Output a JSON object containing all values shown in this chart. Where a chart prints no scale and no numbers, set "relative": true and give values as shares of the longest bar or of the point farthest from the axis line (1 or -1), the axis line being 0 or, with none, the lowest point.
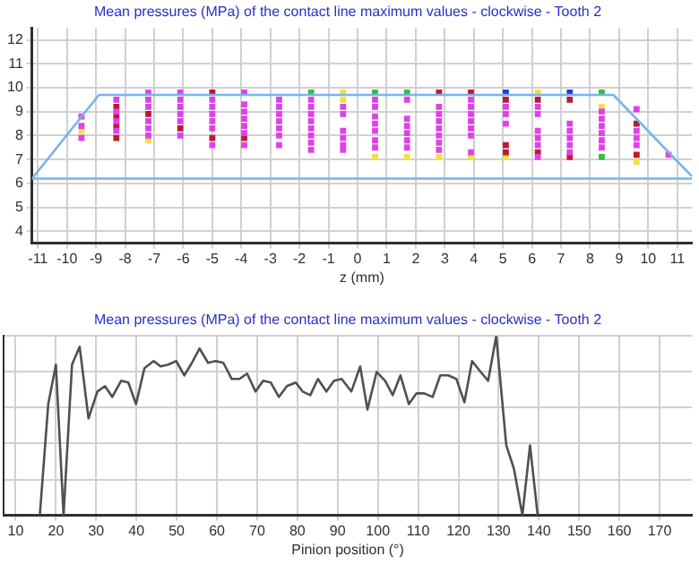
{
  "chart_data": [
    {
      "type": "scatter",
      "title": "Mean pressures (MPa) of the contact line maximum values - clockwise - Tooth 2",
      "xlabel": "z (mm)",
      "xlim": [
        -11.2,
        11.5
      ],
      "xticks": [
        -11,
        -10,
        -9,
        -8,
        -7,
        -6,
        -5,
        -4,
        -3,
        -2,
        -1,
        0,
        1,
        2,
        3,
        4,
        5,
        6,
        7,
        8,
        9,
        10,
        11
      ],
      "ylim": [
        3.5,
        12.5
      ],
      "yticks": [
        4,
        5,
        6,
        7,
        8,
        9,
        10,
        11,
        12
      ],
      "grid": true,
      "marker": "square",
      "ref_lines": [
        {
          "axis": "y",
          "value": 6.2,
          "color": "#78b4e8"
        }
      ],
      "series": [
        {
          "type": "line",
          "marker": "none",
          "color": "#78b4e8",
          "x": [
            -11.2,
            -8.9,
            8.8,
            11.5
          ],
          "values": [
            6.2,
            9.7,
            9.7,
            6.3
          ]
        },
        {
          "color": "#e040e8",
          "x": [
            -9.5,
            -9.5,
            -9.5,
            -8.3,
            -8.3,
            -8.3,
            -8.3,
            -7.2,
            -7.2,
            -7.2,
            -7.2,
            -7.2,
            -7.2,
            -6.1,
            -6.1,
            -6.1,
            -6.1,
            -6.1,
            -6.1,
            -5.0,
            -5.0,
            -5.0,
            -5.0,
            -5.0,
            -5.0,
            -3.9,
            -3.9,
            -3.9,
            -3.9,
            -3.9,
            -3.9,
            -3.9,
            -2.7,
            -2.7,
            -2.7,
            -2.7,
            -2.7,
            -2.7,
            -2.7,
            -1.6,
            -1.6,
            -1.6,
            -1.6,
            -1.6,
            -1.6,
            -1.6,
            -1.6,
            -0.5,
            -0.5,
            -0.5,
            -0.5,
            -0.5,
            -0.5,
            0.6,
            0.6,
            0.6,
            0.6,
            0.6,
            0.6,
            0.6,
            1.7,
            1.7,
            1.7,
            1.7,
            1.7,
            1.7,
            2.8,
            2.8,
            2.8,
            2.8,
            2.8,
            2.8,
            2.8,
            3.9,
            3.9,
            3.9,
            3.9,
            3.9,
            3.9,
            3.9,
            5.1,
            5.1,
            5.1,
            6.2,
            6.2,
            6.2,
            6.2,
            6.2,
            6.2,
            7.3,
            7.3,
            7.3,
            7.3,
            7.3,
            8.4,
            8.4,
            8.4,
            8.4,
            8.4,
            8.4,
            9.6,
            9.6,
            9.6,
            9.6,
            10.7
          ],
          "values": [
            8.8,
            8.4,
            7.9,
            9.5,
            9.0,
            8.6,
            8.2,
            9.8,
            9.5,
            9.2,
            8.6,
            8.3,
            8.0,
            9.8,
            9.5,
            9.2,
            8.9,
            8.6,
            8.0,
            9.5,
            9.2,
            8.9,
            8.6,
            8.3,
            7.6,
            9.8,
            9.3,
            9.0,
            8.7,
            8.4,
            8.1,
            7.6,
            9.5,
            9.2,
            8.9,
            8.6,
            8.3,
            8.0,
            7.6,
            9.5,
            9.2,
            8.9,
            8.6,
            8.3,
            8.0,
            7.7,
            7.4,
            9.2,
            8.9,
            8.2,
            7.9,
            7.6,
            7.4,
            9.5,
            9.2,
            8.8,
            8.5,
            8.2,
            7.8,
            7.5,
            9.5,
            8.7,
            8.4,
            8.1,
            7.8,
            7.5,
            9.2,
            8.9,
            8.6,
            8.3,
            8.0,
            7.7,
            7.4,
            9.5,
            9.2,
            8.9,
            8.6,
            8.3,
            8.0,
            7.3,
            9.2,
            8.9,
            8.5,
            9.2,
            8.9,
            8.2,
            7.9,
            7.6,
            7.1,
            8.5,
            8.2,
            7.9,
            7.6,
            7.3,
            9.0,
            8.7,
            8.4,
            8.1,
            7.8,
            7.5,
            9.1,
            8.2,
            7.9,
            7.6,
            7.2
          ]
        },
        {
          "color": "#c01830",
          "x": [
            -8.3,
            -8.3,
            -8.3,
            -8.3,
            -7.2,
            -6.1,
            -5.0,
            -5.0,
            -3.9,
            2.8,
            3.9,
            5.1,
            5.1,
            5.1,
            6.2,
            6.2,
            7.3,
            7.3,
            9.6,
            9.6
          ],
          "values": [
            9.2,
            8.8,
            8.4,
            7.9,
            8.9,
            8.3,
            9.8,
            7.9,
            7.9,
            9.8,
            9.8,
            9.5,
            7.6,
            7.3,
            9.5,
            7.3,
            9.5,
            7.1,
            8.5,
            7.2
          ]
        },
        {
          "color": "#f0e040",
          "x": [
            -9.5,
            -7.2,
            -0.5,
            -0.5,
            0.6,
            1.7,
            2.8,
            3.9,
            5.1,
            6.2,
            8.4,
            9.6
          ],
          "values": [
            8.2,
            7.8,
            9.8,
            9.5,
            7.1,
            7.1,
            7.1,
            7.1,
            7.1,
            9.8,
            9.2,
            6.9
          ]
        },
        {
          "color": "#30c040",
          "x": [
            -1.6,
            0.6,
            1.7,
            8.4,
            8.4
          ],
          "values": [
            9.8,
            9.8,
            9.8,
            9.8,
            7.1
          ]
        },
        {
          "color": "#2040c8",
          "x": [
            5.1,
            7.3
          ],
          "values": [
            9.8,
            9.8
          ]
        }
      ]
    },
    {
      "type": "line",
      "title": "Mean pressures (MPa) of the contact line maximum values - clockwise - Tooth 2",
      "xlabel": "Pinion position (°)",
      "relative": true,
      "xlim": [
        7,
        178
      ],
      "xticks": [
        10,
        20,
        30,
        40,
        50,
        60,
        70,
        80,
        90,
        100,
        110,
        120,
        130,
        140,
        150,
        160,
        170
      ],
      "grid": true,
      "marker": "none",
      "color": "#505050",
      "x": [
        16,
        18.1,
        20,
        21.9,
        24,
        25.9,
        28.1,
        30.3,
        32.2,
        34,
        36.2,
        38,
        39.9,
        42,
        44.3,
        46,
        47.9,
        49.9,
        51.9,
        53.8,
        55.7,
        57.8,
        59.7,
        61.6,
        63.7,
        65.6,
        67.5,
        69.6,
        71.5,
        73.4,
        75.4,
        77.4,
        79.6,
        81.3,
        83.2,
        85.1,
        87.2,
        89.1,
        91,
        93.4,
        95.6,
        97.4,
        99.7,
        101.8,
        103.7,
        105.6,
        107.7,
        109.6,
        111.5,
        113.6,
        115.5,
        117.5,
        119.5,
        121.5,
        123.4,
        125.5,
        127.4,
        129.4,
        131.9,
        133.8,
        135.9,
        137.8,
        139.7
      ],
      "values": [
        0,
        0.62,
        0.84,
        0,
        0.84,
        0.94,
        0.54,
        0.69,
        0.72,
        0.66,
        0.75,
        0.74,
        0.62,
        0.82,
        0.86,
        0.83,
        0.84,
        0.86,
        0.78,
        0.85,
        0.93,
        0.85,
        0.86,
        0.85,
        0.76,
        0.76,
        0.79,
        0.69,
        0.75,
        0.74,
        0.66,
        0.72,
        0.74,
        0.69,
        0.67,
        0.76,
        0.69,
        0.75,
        0.76,
        0.69,
        0.83,
        0.59,
        0.8,
        0.75,
        0.67,
        0.78,
        0.62,
        0.68,
        0.68,
        0.66,
        0.78,
        0.78,
        0.76,
        0.63,
        0.86,
        0.8,
        0.75,
        1,
        0.39,
        0.26,
        0,
        0.39,
        0
      ]
    }
  ]
}
